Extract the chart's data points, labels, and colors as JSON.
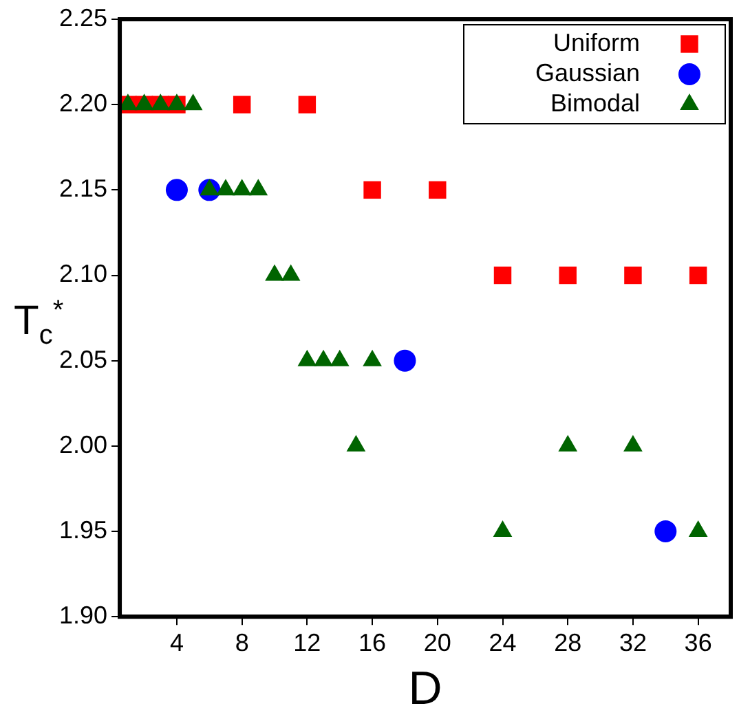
{
  "chart_data": {
    "type": "scatter",
    "xlabel": "D",
    "ylabel": "T$_{c}$$^{*}$",
    "xlim": [
      0.5,
      38
    ],
    "xticks": [
      4,
      8,
      12,
      16,
      20,
      24,
      28,
      32,
      36
    ],
    "ylim": [
      1.9,
      2.25
    ],
    "yticks": [
      {
        "value": 1.9,
        "label": "1.90"
      },
      {
        "value": 1.95,
        "label": "1.95"
      },
      {
        "value": 2.0,
        "label": "2.00"
      },
      {
        "value": 2.05,
        "label": "2.05"
      },
      {
        "value": 2.1,
        "label": "2.10"
      },
      {
        "value": 2.15,
        "label": "2.15"
      },
      {
        "value": 2.2,
        "label": "2.20"
      },
      {
        "value": 2.25,
        "label": "2.25"
      }
    ],
    "grid": false,
    "legend": "top right",
    "series": [
      {
        "name": "Uniform",
        "color": "#ff0000",
        "marker": "square",
        "x": [
          1,
          2,
          3,
          4,
          8,
          12,
          16,
          20,
          24,
          28,
          32,
          36
        ],
        "values": [
          2.2,
          2.2,
          2.2,
          2.2,
          2.2,
          2.2,
          2.15,
          2.15,
          2.1,
          2.1,
          2.1,
          2.1
        ]
      },
      {
        "name": "Gaussian",
        "color": "#0000ff",
        "marker": "circle",
        "x": [
          4,
          6,
          18,
          34
        ],
        "values": [
          2.15,
          2.15,
          2.05,
          1.95
        ]
      },
      {
        "name": "Bimodal",
        "color": "#006400",
        "marker": "triangle",
        "x": [
          1,
          2,
          3,
          4,
          5,
          6,
          7,
          8,
          9,
          10,
          11,
          12,
          13,
          14,
          16,
          15,
          28,
          32,
          24,
          36
        ],
        "values": [
          2.2,
          2.2,
          2.2,
          2.2,
          2.2,
          2.15,
          2.15,
          2.15,
          2.15,
          2.1,
          2.1,
          2.05,
          2.05,
          2.05,
          2.05,
          2.0,
          2.0,
          2.0,
          1.95,
          1.95
        ]
      }
    ]
  }
}
